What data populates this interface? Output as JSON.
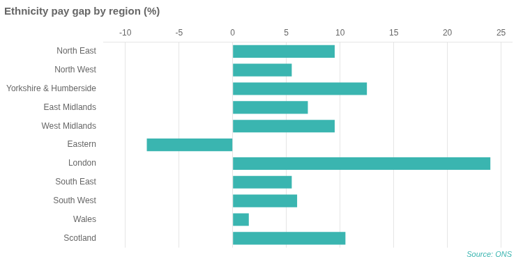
{
  "chart_data": {
    "type": "bar",
    "orientation": "horizontal",
    "title": "Ethnicity pay gap by region (%)",
    "categories": [
      "North East",
      "North West",
      "Yorkshire & Humberside",
      "East Midlands",
      "West Midlands",
      "Eastern",
      "London",
      "South East",
      "South West",
      "Wales",
      "Scotland"
    ],
    "values": [
      9.5,
      5.5,
      12.5,
      7.0,
      9.5,
      -8.0,
      24.0,
      5.5,
      6.0,
      1.5,
      10.5
    ],
    "color": "#3ab5b0",
    "xlim": [
      -12,
      26
    ],
    "xticks": [
      -10,
      -5,
      0,
      5,
      10,
      15,
      20,
      25
    ],
    "grid": true,
    "annotation": "Source: ONS"
  }
}
